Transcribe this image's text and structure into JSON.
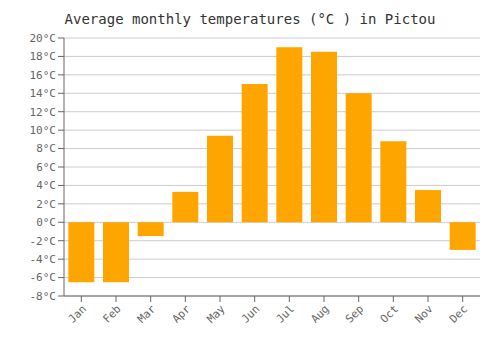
{
  "chart_data": {
    "type": "bar",
    "title": "Average monthly temperatures (°C ) in Pictou",
    "categories": [
      "Jan",
      "Feb",
      "Mar",
      "Apr",
      "May",
      "Jun",
      "Jul",
      "Aug",
      "Sep",
      "Oct",
      "Nov",
      "Dec"
    ],
    "values": [
      -6.5,
      -6.5,
      -1.5,
      3.3,
      9.4,
      15.0,
      19.0,
      18.5,
      14.0,
      8.8,
      3.5,
      -3.0
    ],
    "color": "#FFA500",
    "ylim": [
      -8,
      20
    ],
    "yticks": [
      {
        "value": -8,
        "label": "-8°C"
      },
      {
        "value": -6,
        "label": "-6°C"
      },
      {
        "value": -4,
        "label": "-4°C"
      },
      {
        "value": -2,
        "label": "-2°C"
      },
      {
        "value": 0,
        "label": "0°C"
      },
      {
        "value": 2,
        "label": "2°C"
      },
      {
        "value": 4,
        "label": "4°C"
      },
      {
        "value": 6,
        "label": "6°C"
      },
      {
        "value": 8,
        "label": "8°C"
      },
      {
        "value": 10,
        "label": "10°C"
      },
      {
        "value": 12,
        "label": "12°C"
      },
      {
        "value": 14,
        "label": "14°C"
      },
      {
        "value": 16,
        "label": "16°C"
      },
      {
        "value": 18,
        "label": "18°C"
      },
      {
        "value": 20,
        "label": "20°C"
      }
    ],
    "grid": true
  }
}
